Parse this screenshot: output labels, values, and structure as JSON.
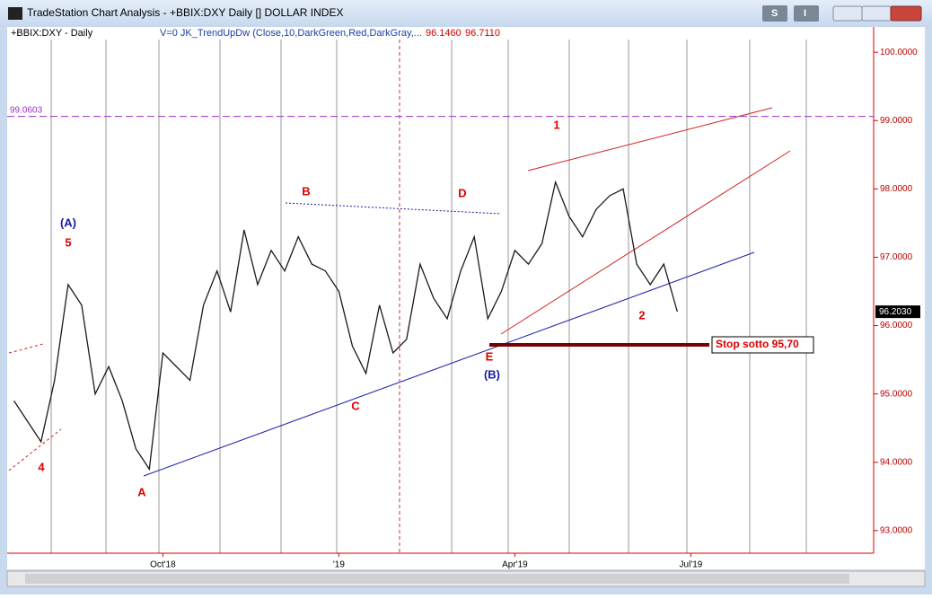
{
  "window_title": "TradeStation Chart Analysis - +BBIX:DXY Daily [] DOLLAR INDEX",
  "buttons": [
    "S",
    "I"
  ],
  "chart_data": {
    "type": "line",
    "symbol_label": "+BBIX:DXY - Daily",
    "indicator_label": "V=0  JK_TrendUpDw (Close,10,DarkGreen,Red,DarkGray,...",
    "indicator_values": [
      "96.1460",
      "96.7110"
    ],
    "categories": [
      null,
      null,
      null,
      null,
      null,
      null,
      null,
      null,
      null,
      null,
      null,
      "Oct'18",
      null,
      null,
      null,
      null,
      null,
      null,
      null,
      null,
      null,
      null,
      null,
      null,
      "'19",
      null,
      null,
      null,
      null,
      null,
      null,
      null,
      null,
      null,
      null,
      null,
      null,
      "Apr'19",
      null,
      null,
      null,
      null,
      null,
      null,
      null,
      null,
      null,
      null,
      null,
      null,
      "Jul'19",
      null,
      null,
      null,
      null,
      null,
      null,
      null,
      null,
      null,
      null,
      null,
      null,
      null
    ],
    "series": [
      {
        "name": "+BBIX:DXY",
        "color": "#1a1a1a",
        "values": [
          94.9,
          94.6,
          94.3,
          95.2,
          96.6,
          96.3,
          95.0,
          95.4,
          94.9,
          94.2,
          93.9,
          95.6,
          95.4,
          95.2,
          96.3,
          96.8,
          96.2,
          97.4,
          96.6,
          97.1,
          96.8,
          97.3,
          96.9,
          96.8,
          96.5,
          95.7,
          95.3,
          96.3,
          95.6,
          95.8,
          96.9,
          96.4,
          96.1,
          96.8,
          97.3,
          96.1,
          96.5,
          97.1,
          96.9,
          97.2,
          98.1,
          97.6,
          97.3,
          97.7,
          97.9,
          98.0,
          96.9,
          96.6,
          96.9,
          96.203,
          null,
          null,
          null,
          null,
          null,
          null,
          null,
          null,
          null,
          null,
          null,
          null,
          null,
          null
        ]
      }
    ],
    "ylim": [
      92.67,
      100.37
    ],
    "yticks": [
      {
        "value": 93,
        "label": "93.0000"
      },
      {
        "value": 94,
        "label": "94.0000"
      },
      {
        "value": 95,
        "label": "95.0000"
      },
      {
        "value": 96,
        "label": "96.0000"
      },
      {
        "value": 97,
        "label": "97.0000"
      },
      {
        "value": 98,
        "label": "98.0000"
      },
      {
        "value": 99,
        "label": "99.0000"
      },
      {
        "value": 100,
        "label": "100.0000"
      }
    ],
    "horizontal_line": {
      "value": 99.0603,
      "color": "#9b30c8"
    },
    "last_price": {
      "value": 96.203,
      "label": "96.2030"
    },
    "annotations": [
      "(A)",
      "5",
      "4",
      "A",
      "B",
      "C",
      "D",
      "E",
      "(B)",
      "1",
      "2"
    ],
    "stop_label": "Stop sotto 95,70"
  }
}
